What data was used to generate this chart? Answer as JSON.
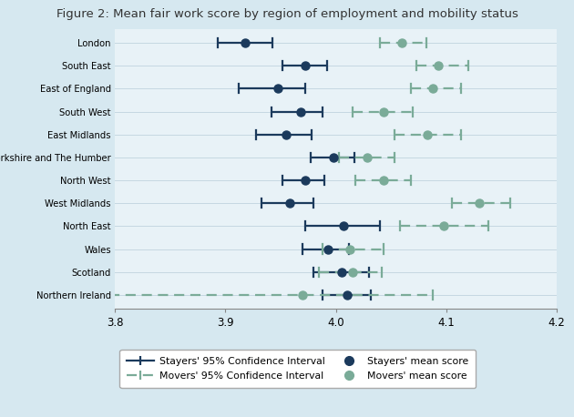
{
  "title": "Figure 2: Mean fair work score by region of employment and mobility status",
  "regions": [
    "London",
    "South East",
    "East of England",
    "South West",
    "East Midlands",
    "Yorkshire and The Humber",
    "North West",
    "West Midlands",
    "North East",
    "Wales",
    "Scotland",
    "Northern Ireland"
  ],
  "stayers": {
    "mean": [
      3.918,
      3.972,
      3.948,
      3.968,
      3.955,
      3.998,
      3.972,
      3.958,
      4.007,
      3.993,
      4.005,
      4.01
    ],
    "ci_lo": [
      3.893,
      3.952,
      3.912,
      3.942,
      3.928,
      3.977,
      3.952,
      3.933,
      3.972,
      3.97,
      3.98,
      3.988
    ],
    "ci_hi": [
      3.943,
      3.992,
      3.972,
      3.988,
      3.978,
      4.017,
      3.99,
      3.98,
      4.04,
      4.012,
      4.03,
      4.032
    ]
  },
  "movers": {
    "mean": [
      4.06,
      4.093,
      4.088,
      4.043,
      4.083,
      4.028,
      4.043,
      4.13,
      4.098,
      4.013,
      4.015,
      3.97
    ],
    "ci_lo": [
      4.04,
      4.073,
      4.068,
      4.015,
      4.053,
      4.003,
      4.018,
      4.105,
      4.058,
      3.988,
      3.985,
      3.795
    ],
    "ci_hi": [
      4.082,
      4.12,
      4.113,
      4.07,
      4.113,
      4.053,
      4.068,
      4.158,
      4.138,
      4.043,
      4.042,
      4.088
    ]
  },
  "stayer_color": "#1b3a5c",
  "mover_color": "#7aab98",
  "xlim": [
    3.8,
    4.2
  ],
  "xticks": [
    3.8,
    3.9,
    4.0,
    4.1,
    4.2
  ],
  "bg_color": "#d6e8f0",
  "plot_bg_color": "#e8f2f7",
  "grid_color": "#c5d8e2"
}
